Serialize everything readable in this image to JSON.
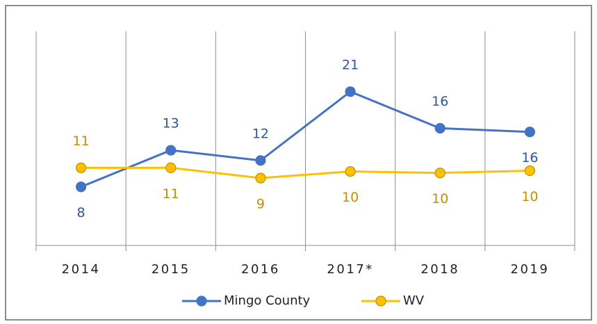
{
  "chart_data": {
    "type": "line",
    "categories": [
      "2014",
      "2015",
      "2016",
      "2017*",
      "2018",
      "2019"
    ],
    "series": [
      {
        "name": "Mingo County",
        "color": "#4472c4",
        "label_color": "#2f5597",
        "values": [
          8,
          13,
          11.6,
          21,
          16,
          15.5
        ],
        "value_labels": [
          "8",
          "13",
          "12",
          "21",
          "16",
          "16"
        ]
      },
      {
        "name": "WV",
        "color": "#ffc000",
        "label_color": "#bf9000",
        "values": [
          10.6,
          10.6,
          9.2,
          10.1,
          9.9,
          10.2
        ],
        "value_labels": [
          "11",
          "11",
          "9",
          "10",
          "10",
          "10"
        ]
      }
    ],
    "ylim": [
      0,
      30
    ],
    "legend": "bottom"
  }
}
